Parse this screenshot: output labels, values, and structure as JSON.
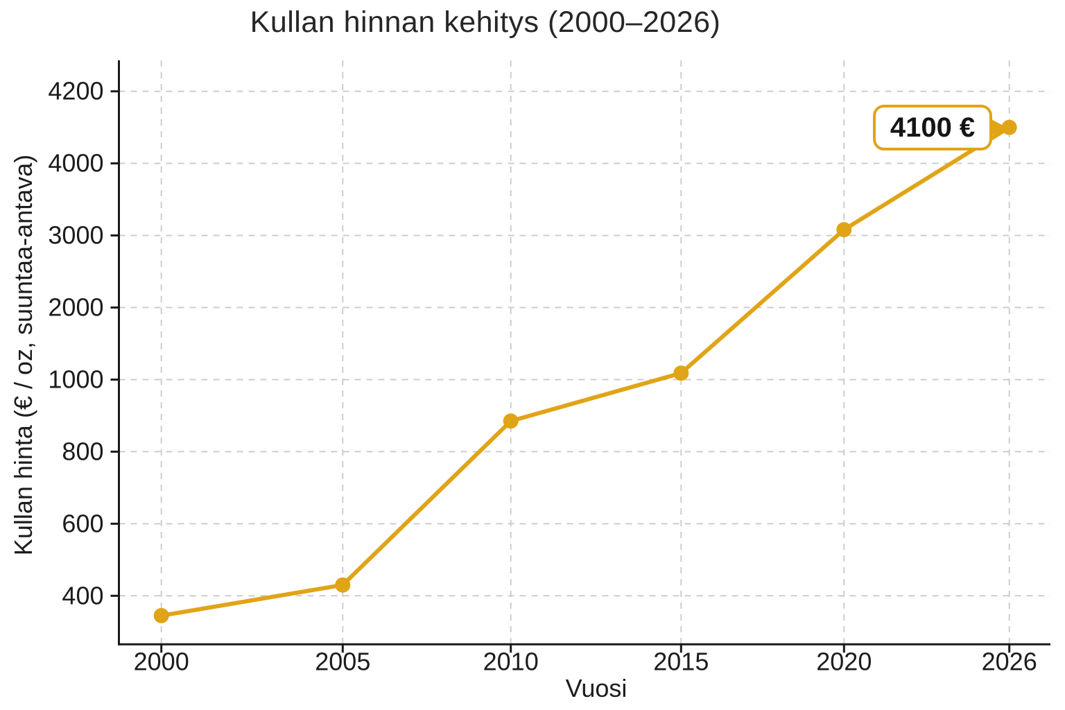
{
  "chart_data": {
    "type": "line",
    "title": "Kullan hinnan kehitys (2000–2026)",
    "xlabel": "Vuosi",
    "ylabel": "Kullan hinta (€ / oz, suuntaa-antava)",
    "x_tick_labels": [
      "2000",
      "2005",
      "2010",
      "2015",
      "2020",
      "2026"
    ],
    "y_tick_values": [
      400,
      600,
      800,
      1000,
      2000,
      3000,
      4000,
      4200
    ],
    "y_scale_note": "non-linear: listed y ticks are evenly spaced",
    "series": [
      {
        "name": "Kullan hinta",
        "x": [
          2000,
          2005,
          2010,
          2015,
          2020,
          2026
        ],
        "values": [
          345,
          430,
          885,
          1090,
          3080,
          4100
        ]
      }
    ],
    "annotation": {
      "text": "4100 €",
      "x": 2026,
      "value": 4100
    },
    "grid": true,
    "legend": false,
    "colors": {
      "line": "#E0A417",
      "marker": "#E0A417",
      "grid": "#CDCDCD",
      "axis": "#1A1A1A",
      "tick_text": "#1C1C1C",
      "annotation_border": "#E0A417",
      "annotation_bg": "#FFFFFF",
      "annotation_text": "#151515"
    }
  }
}
